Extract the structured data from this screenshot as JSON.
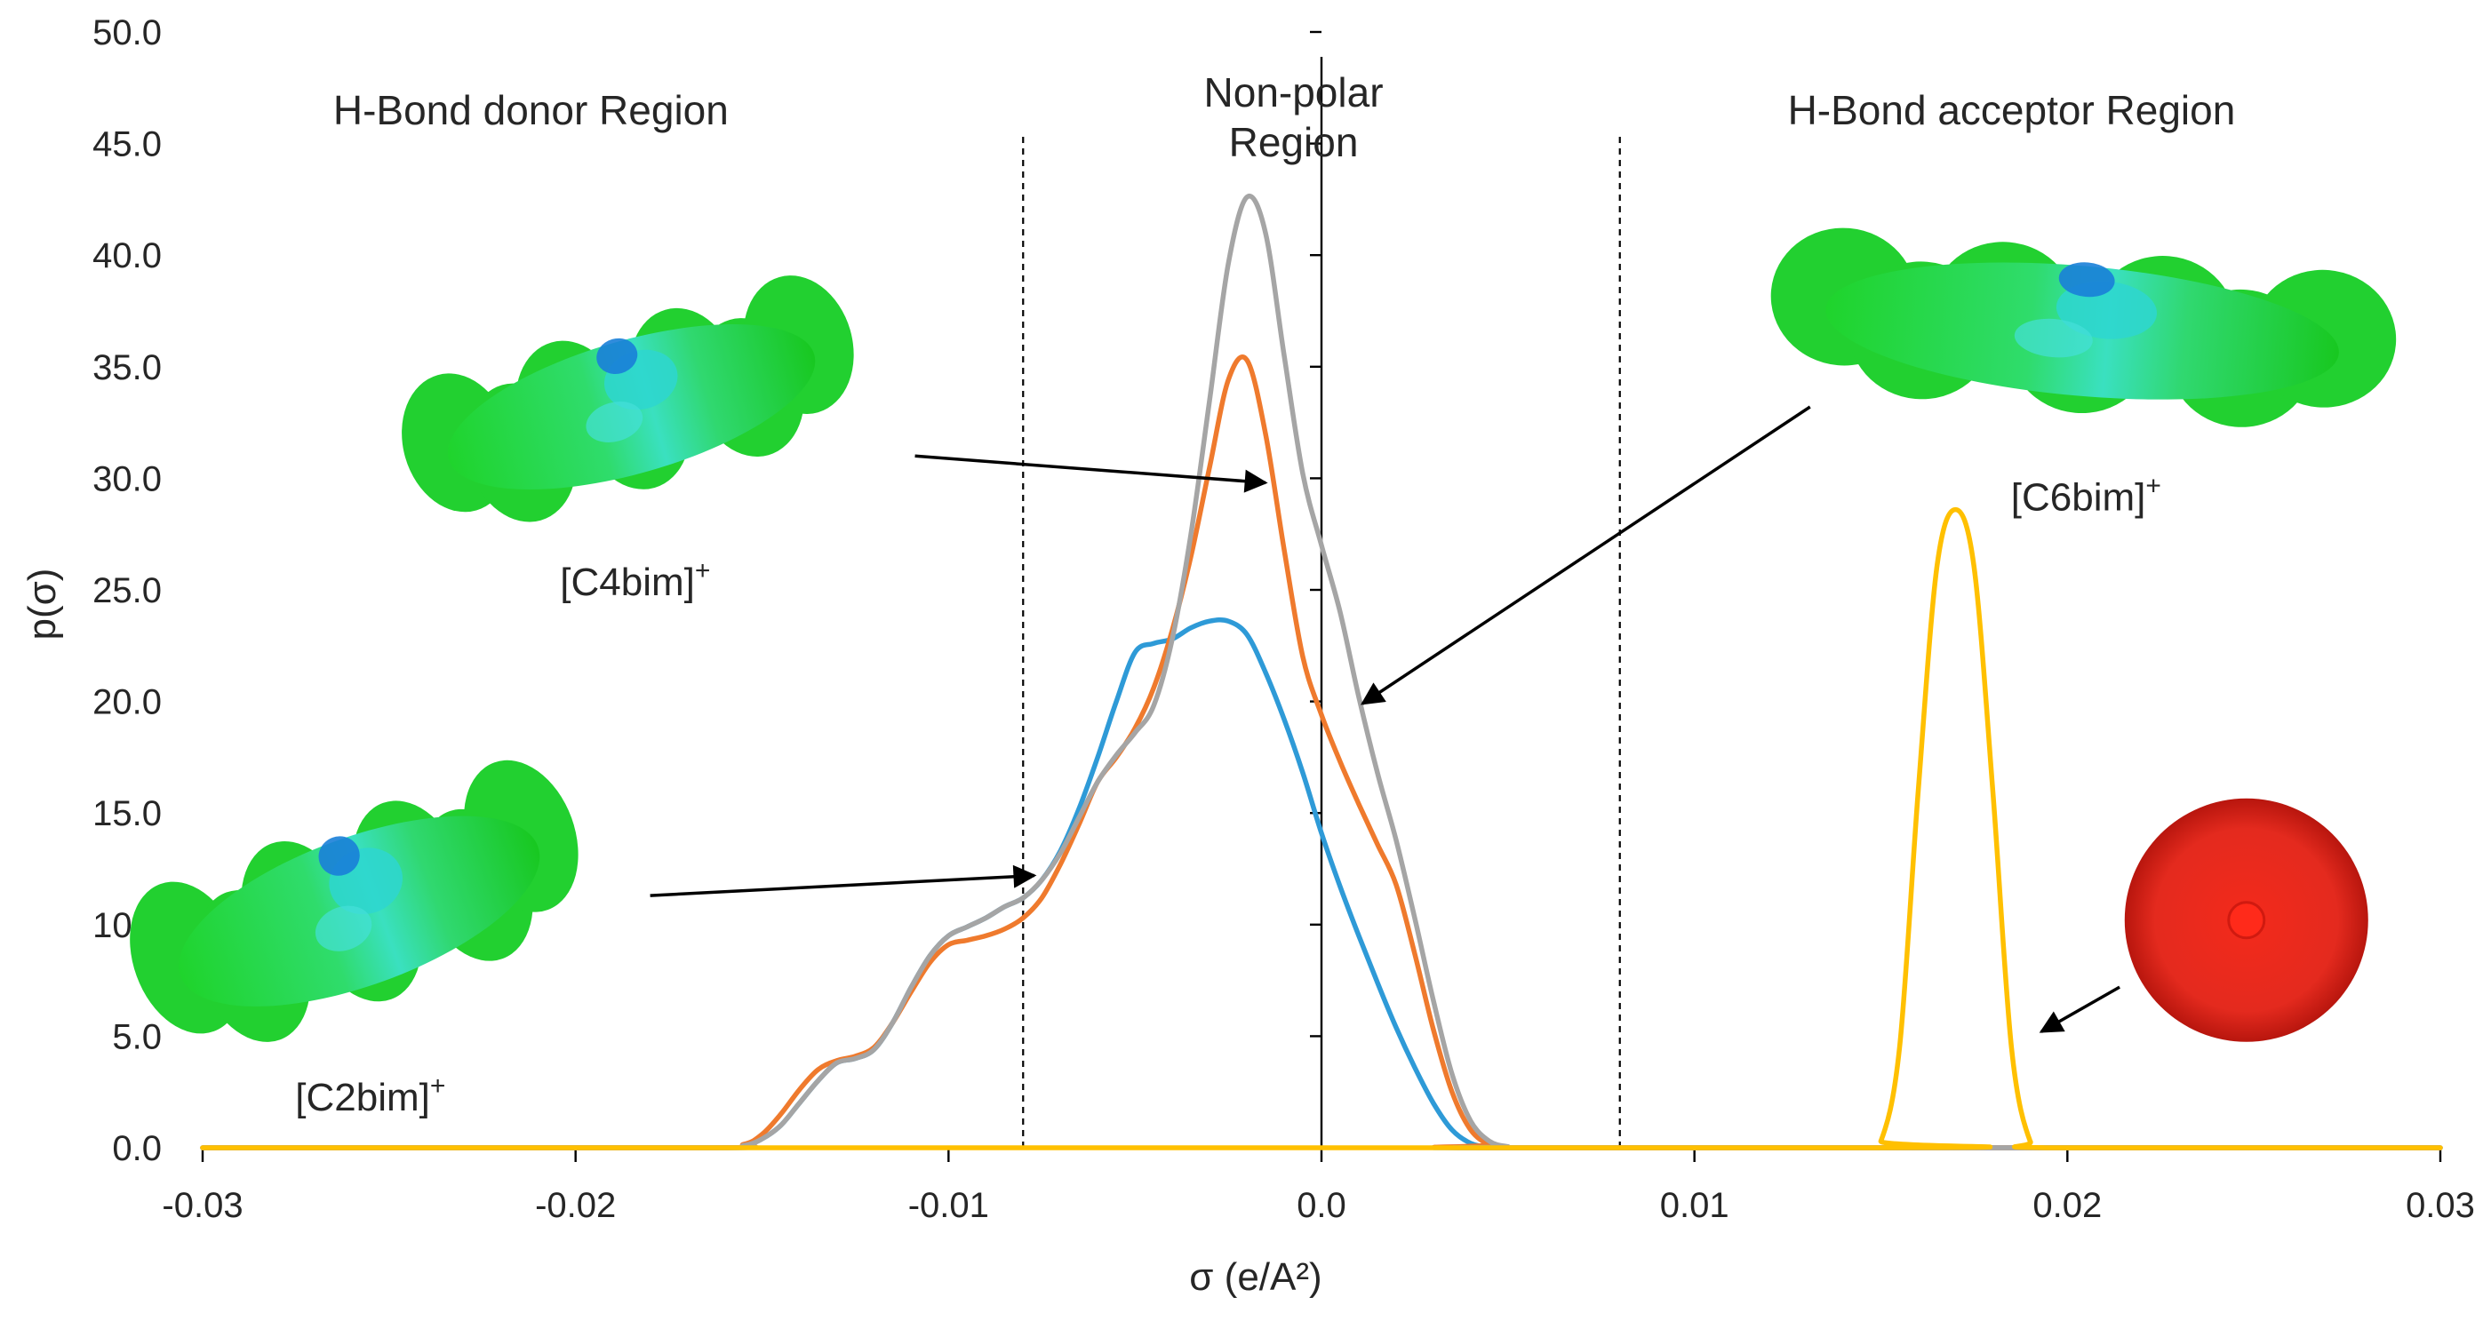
{
  "chart_data": {
    "type": "line",
    "title": "",
    "xlabel": "σ (e/A²)",
    "ylabel": "p(σ)",
    "xlim": [
      -0.03,
      0.03
    ],
    "ylim": [
      0,
      50
    ],
    "xticks": [
      -0.03,
      -0.02,
      -0.01,
      0.0,
      0.01,
      0.02,
      0.03
    ],
    "xtick_labels": [
      "-0.03",
      "-0.02",
      "-0.01",
      "0.0",
      "0.01",
      "0.02",
      "0.03"
    ],
    "yticks": [
      0,
      5,
      10,
      15,
      20,
      25,
      30,
      35,
      40,
      45,
      50
    ],
    "ytick_labels": [
      "0.0",
      "5.0",
      "10.0",
      "15.0",
      "20.0",
      "25.0",
      "30.0",
      "35.0",
      "40.0",
      "45.0",
      "50.0"
    ],
    "vertical_lines": [
      {
        "x": -0.008,
        "style": "dashed"
      },
      {
        "x": 0.0,
        "style": "solid"
      },
      {
        "x": 0.008,
        "style": "dashed"
      }
    ],
    "region_labels": [
      {
        "id": "donor",
        "text": "H-Bond donor Region",
        "lines": [
          "H-Bond donor Region"
        ],
        "x": -0.0265,
        "y": 46.5
      },
      {
        "id": "nonpolar",
        "text": "Non-polar Region",
        "lines": [
          "Non-polar",
          "Region"
        ],
        "x": -0.00075,
        "y": 47.3
      },
      {
        "id": "acceptor",
        "text": "H-Bond acceptor Region",
        "lines": [
          "H-Bond acceptor Region"
        ],
        "x": 0.0125,
        "y": 46.5
      }
    ],
    "molecules": [
      {
        "id": "c2bim",
        "label": "[C2bim]⁺",
        "label_base": "[C2bim]",
        "label_sup": "+",
        "series": "[C2bim]+",
        "center": [
          -0.0258,
          10.6
        ],
        "label_pos": [
          -0.0255,
          2.3
        ],
        "arrow_from": [
          -0.018,
          11.3
        ],
        "arrow_to": [
          -0.0077,
          12.2
        ]
      },
      {
        "id": "c4bim",
        "label": "[C4bim]⁺",
        "label_base": "[C4bim]",
        "label_sup": "+",
        "series": "[C4bim]+",
        "center": [
          -0.0185,
          33.2
        ],
        "label_pos": [
          -0.0184,
          25.4
        ],
        "arrow_from": [
          -0.0109,
          31.0
        ],
        "arrow_to": [
          -0.0015,
          29.8
        ]
      },
      {
        "id": "c6bim",
        "label": "[C6bim]⁺",
        "label_base": "[C6bim]",
        "label_sup": "+",
        "series": "[C6bim]+",
        "center": [
          0.0204,
          36.6
        ],
        "label_pos": [
          0.0205,
          29.2
        ],
        "arrow_from": [
          0.0131,
          33.2
        ],
        "arrow_to": [
          0.0011,
          19.9
        ]
      },
      {
        "id": "anion",
        "label": "",
        "series": "anion",
        "center": [
          0.0248,
          10.2
        ],
        "arrow_from": [
          0.0214,
          7.2
        ],
        "arrow_to": [
          0.0193,
          5.2
        ]
      }
    ],
    "series": [
      {
        "name": "[C2bim]+",
        "color": "#2e9ad7",
        "x": [
          -0.03,
          -0.0165,
          -0.0155,
          -0.015,
          -0.0145,
          -0.014,
          -0.0135,
          -0.013,
          -0.0125,
          -0.012,
          -0.0115,
          -0.011,
          -0.0105,
          -0.01,
          -0.0095,
          -0.009,
          -0.0085,
          -0.008,
          -0.0075,
          -0.007,
          -0.0065,
          -0.006,
          -0.0055,
          -0.005,
          -0.0045,
          -0.004,
          -0.0035,
          -0.003,
          -0.0025,
          -0.002,
          -0.0015,
          -0.001,
          -0.0005,
          0.0,
          0.0005,
          0.001,
          0.0015,
          0.002,
          0.0025,
          0.003,
          0.0035,
          0.004,
          0.0045,
          0.005,
          0.03
        ],
        "y": [
          0,
          0,
          0.1,
          0.4,
          1.0,
          2.0,
          3.0,
          3.8,
          4.0,
          4.4,
          5.6,
          7.2,
          8.6,
          9.5,
          9.9,
          10.3,
          10.8,
          11.2,
          12.0,
          13.3,
          15.2,
          17.5,
          20.0,
          22.2,
          22.6,
          22.8,
          23.3,
          23.6,
          23.6,
          23.0,
          21.3,
          19.2,
          16.8,
          14.1,
          11.7,
          9.5,
          7.4,
          5.4,
          3.6,
          2.0,
          0.8,
          0.2,
          0.02,
          0,
          0
        ]
      },
      {
        "name": "[C4bim]+",
        "color": "#ef7a2d",
        "x": [
          -0.03,
          -0.0165,
          -0.0155,
          -0.015,
          -0.0145,
          -0.014,
          -0.0135,
          -0.013,
          -0.0125,
          -0.012,
          -0.0115,
          -0.011,
          -0.0105,
          -0.01,
          -0.0095,
          -0.009,
          -0.0085,
          -0.008,
          -0.0075,
          -0.007,
          -0.0065,
          -0.006,
          -0.0055,
          -0.005,
          -0.0045,
          -0.004,
          -0.0035,
          -0.003,
          -0.0025,
          -0.002,
          -0.0015,
          -0.001,
          -0.0005,
          0.0,
          0.0005,
          0.001,
          0.0015,
          0.002,
          0.0025,
          0.003,
          0.0035,
          0.004,
          0.0045,
          0.005,
          0.03
        ],
        "y": [
          0,
          0,
          0.15,
          0.6,
          1.5,
          2.6,
          3.5,
          3.9,
          4.1,
          4.5,
          5.6,
          7.0,
          8.3,
          9.1,
          9.3,
          9.5,
          9.8,
          10.3,
          11.2,
          12.7,
          14.5,
          16.4,
          17.5,
          18.8,
          20.6,
          23.2,
          26.5,
          30.5,
          34.4,
          35.3,
          32.0,
          26.8,
          22.0,
          19.4,
          17.3,
          15.4,
          13.6,
          11.8,
          8.7,
          5.3,
          2.5,
          0.8,
          0.15,
          0,
          0
        ]
      },
      {
        "name": "[C6bim]+",
        "color": "#a5a5a5",
        "x": [
          -0.03,
          -0.0165,
          -0.0155,
          -0.015,
          -0.0145,
          -0.014,
          -0.0135,
          -0.013,
          -0.0125,
          -0.012,
          -0.0115,
          -0.011,
          -0.0105,
          -0.01,
          -0.0095,
          -0.009,
          -0.0085,
          -0.008,
          -0.0075,
          -0.007,
          -0.0065,
          -0.006,
          -0.0055,
          -0.005,
          -0.0045,
          -0.004,
          -0.0035,
          -0.003,
          -0.0025,
          -0.002,
          -0.0015,
          -0.001,
          -0.0005,
          0.0,
          0.0005,
          0.001,
          0.0015,
          0.002,
          0.0025,
          0.003,
          0.0035,
          0.004,
          0.0045,
          0.005,
          0.0055,
          0.03
        ],
        "y": [
          0,
          0,
          0.1,
          0.4,
          1.0,
          2.0,
          3.0,
          3.8,
          4.0,
          4.4,
          5.6,
          7.2,
          8.6,
          9.5,
          9.9,
          10.3,
          10.8,
          11.2,
          12.0,
          13.2,
          14.8,
          16.4,
          17.6,
          18.6,
          19.8,
          22.8,
          27.5,
          33.5,
          39.6,
          42.6,
          41.0,
          35.5,
          30.2,
          27.0,
          24.0,
          20.2,
          16.8,
          13.8,
          10.3,
          6.6,
          3.3,
          1.2,
          0.3,
          0.05,
          0,
          0
        ]
      },
      {
        "name": "anion",
        "color": "#ffc000",
        "x": [
          -0.03,
          0.0145,
          0.015,
          0.0155,
          0.016,
          0.0165,
          0.017,
          0.0175,
          0.018,
          0.0185,
          0.019,
          0.0195,
          0.03
        ],
        "y": [
          0,
          0,
          0.3,
          4.5,
          16.0,
          26.0,
          28.6,
          26.0,
          16.0,
          4.5,
          0.3,
          0,
          0
        ]
      }
    ]
  }
}
